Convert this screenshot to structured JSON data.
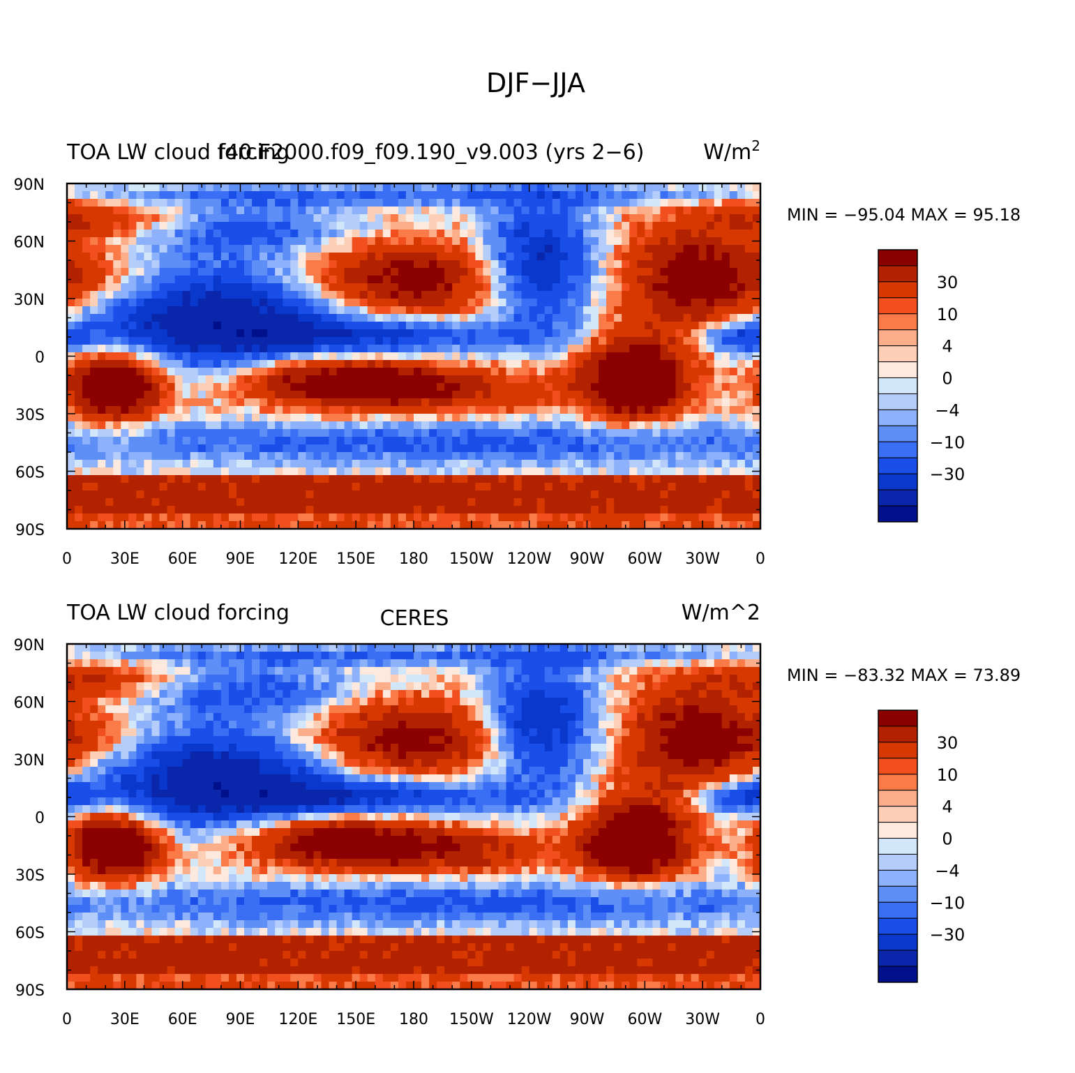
{
  "figure": {
    "title": "DJF−JJA"
  },
  "panels": [
    {
      "id": "model",
      "left_title": "TOA LW cloud forcing",
      "center_title": "f40.F2000.f09_f09.190_v9.003 (yrs 2−6)",
      "units_main": "W/m",
      "units_sup": "2",
      "stats": "MIN = −95.04  MAX =   95.18"
    },
    {
      "id": "obs",
      "left_title": "TOA LW cloud forcing",
      "center_title": "CERES",
      "units_main": "W/m^2",
      "units_sup": "",
      "stats": "MIN = −83.32  MAX =   73.89"
    }
  ],
  "axes": {
    "lat_labels": [
      "90N",
      "60N",
      "30N",
      "0",
      "30S",
      "60S",
      "90S"
    ],
    "lon_labels": [
      "0",
      "30E",
      "60E",
      "90E",
      "120E",
      "150E",
      "180",
      "150W",
      "120W",
      "90W",
      "60W",
      "30W",
      "0"
    ]
  },
  "colorbar": {
    "colors": [
      "#8b0000",
      "#b22200",
      "#d63800",
      "#f24f1f",
      "#fa7b48",
      "#fcad8a",
      "#fdcfb6",
      "#fde9dd",
      "#d3e7fb",
      "#b4cdfb",
      "#8db1fa",
      "#5e8ff7",
      "#3a6ef5",
      "#1a4ee8",
      "#0a38cc",
      "#0a26ab",
      "#00108a"
    ],
    "labels": [
      "30",
      "10",
      "4",
      "0",
      "−4",
      "−10",
      "−30"
    ]
  },
  "chart_data": {
    "type": "heatmap",
    "title": "DJF−JJA",
    "units": "W/m^2",
    "colorbar_levels_labeled": [
      30,
      10,
      4,
      0,
      -4,
      -10,
      -30
    ],
    "xlim_lon": [
      0,
      360
    ],
    "ylim_lat": [
      -90,
      90
    ],
    "panels": [
      {
        "name": "f40.F2000.f09_f09.190_v9.003 (yrs 2−6)",
        "variable": "TOA LW cloud forcing",
        "min": -95.04,
        "max": 95.18
      },
      {
        "name": "CERES",
        "variable": "TOA LW cloud forcing",
        "min": -83.32,
        "max": 73.89
      }
    ]
  }
}
